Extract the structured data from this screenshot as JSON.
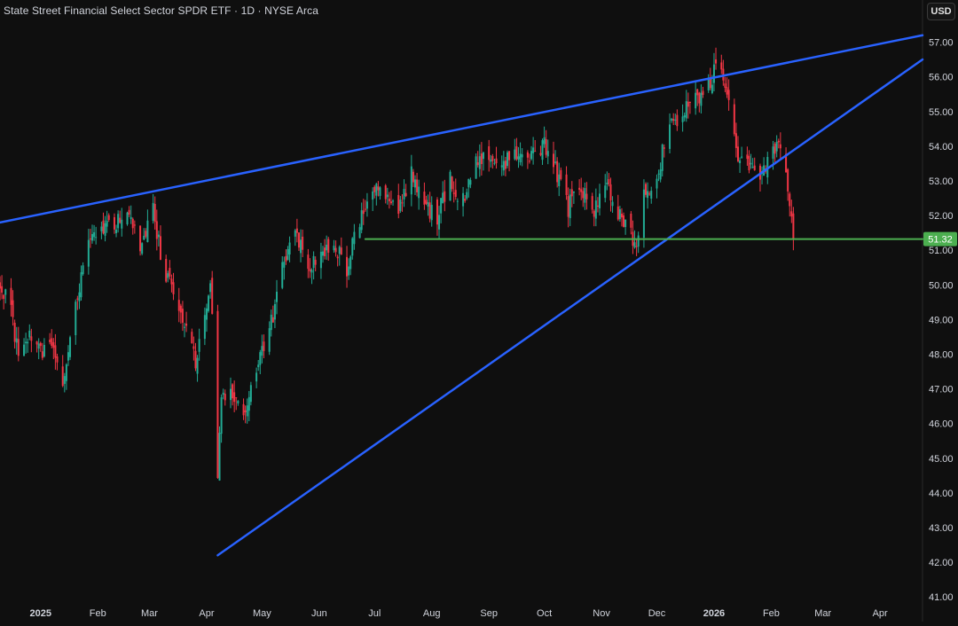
{
  "header": {
    "title": "State Street Financial Select Sector SPDR ETF · 1D · NYSE Arca",
    "currency_label": "USD"
  },
  "colors": {
    "background": "#0f0f0f",
    "up": "#22ab94",
    "down": "#f23645",
    "trendline": "#2962ff",
    "support": "#4caf50",
    "axis_text": "#d1d4dc"
  },
  "chart_data": {
    "type": "candlestick",
    "title": "State Street Financial Select Sector SPDR ETF · 1D · NYSE Arca",
    "currency": "USD",
    "y_axis": {
      "ylim": [
        40.8,
        57.5
      ],
      "ticks": [
        "41.00",
        "42.00",
        "43.00",
        "44.00",
        "45.00",
        "46.00",
        "47.00",
        "48.00",
        "49.00",
        "50.00",
        "51.00",
        "52.00",
        "53.00",
        "54.00",
        "55.00",
        "56.00",
        "57.00"
      ],
      "side": "right"
    },
    "x_axis": {
      "xlim": [
        "2024-12-10",
        "2026-04-24"
      ],
      "ticks": [
        {
          "date": "2025-01-01",
          "label": "2025",
          "bold": true
        },
        {
          "date": "2025-02-01",
          "label": "Feb",
          "bold": false
        },
        {
          "date": "2025-03-01",
          "label": "Mar",
          "bold": false
        },
        {
          "date": "2025-04-01",
          "label": "Apr",
          "bold": false
        },
        {
          "date": "2025-05-01",
          "label": "May",
          "bold": false
        },
        {
          "date": "2025-06-01",
          "label": "Jun",
          "bold": false
        },
        {
          "date": "2025-07-01",
          "label": "Jul",
          "bold": false
        },
        {
          "date": "2025-08-01",
          "label": "Aug",
          "bold": false
        },
        {
          "date": "2025-09-01",
          "label": "Sep",
          "bold": false
        },
        {
          "date": "2025-10-01",
          "label": "Oct",
          "bold": false
        },
        {
          "date": "2025-11-01",
          "label": "Nov",
          "bold": false
        },
        {
          "date": "2025-12-01",
          "label": "Dec",
          "bold": false
        },
        {
          "date": "2026-01-01",
          "label": "2026",
          "bold": true
        },
        {
          "date": "2026-02-01",
          "label": "Feb",
          "bold": false
        },
        {
          "date": "2026-03-01",
          "label": "Mar",
          "bold": false
        },
        {
          "date": "2026-04-01",
          "label": "Apr",
          "bold": false
        }
      ]
    },
    "close_path": [
      [
        "2024-12-10",
        50.1
      ],
      [
        "2024-12-16",
        49.3
      ],
      [
        "2024-12-20",
        47.9
      ],
      [
        "2024-12-27",
        48.6
      ],
      [
        "2025-01-02",
        48.0
      ],
      [
        "2025-01-08",
        48.3
      ],
      [
        "2025-01-13",
        47.3
      ],
      [
        "2025-01-20",
        49.5
      ],
      [
        "2025-01-27",
        51.2
      ],
      [
        "2025-02-03",
        51.6
      ],
      [
        "2025-02-10",
        51.8
      ],
      [
        "2025-02-17",
        52.1
      ],
      [
        "2025-02-24",
        51.2
      ],
      [
        "2025-03-03",
        52.2
      ],
      [
        "2025-03-07",
        50.9
      ],
      [
        "2025-03-13",
        49.8
      ],
      [
        "2025-03-20",
        48.8
      ],
      [
        "2025-03-26",
        47.7
      ],
      [
        "2025-03-31",
        49.2
      ],
      [
        "2025-04-03",
        50.1
      ],
      [
        "2025-04-05",
        48.4
      ],
      [
        "2025-04-07",
        44.3
      ],
      [
        "2025-04-09",
        46.8
      ],
      [
        "2025-04-14",
        46.9
      ],
      [
        "2025-04-21",
        46.2
      ],
      [
        "2025-04-28",
        47.7
      ],
      [
        "2025-05-05",
        48.6
      ],
      [
        "2025-05-12",
        50.6
      ],
      [
        "2025-05-19",
        51.7
      ],
      [
        "2025-05-26",
        50.4
      ],
      [
        "2025-06-02",
        51.0
      ],
      [
        "2025-06-09",
        51.2
      ],
      [
        "2025-06-16",
        50.5
      ],
      [
        "2025-06-23",
        51.9
      ],
      [
        "2025-06-30",
        52.9
      ],
      [
        "2025-07-07",
        52.4
      ],
      [
        "2025-07-14",
        52.1
      ],
      [
        "2025-07-21",
        53.3
      ],
      [
        "2025-07-28",
        52.2
      ],
      [
        "2025-08-04",
        52.0
      ],
      [
        "2025-08-11",
        53.0
      ],
      [
        "2025-08-18",
        52.4
      ],
      [
        "2025-08-25",
        53.5
      ],
      [
        "2025-09-01",
        53.8
      ],
      [
        "2025-09-08",
        53.5
      ],
      [
        "2025-09-15",
        53.9
      ],
      [
        "2025-09-22",
        53.8
      ],
      [
        "2025-10-01",
        54.0
      ],
      [
        "2025-10-08",
        53.2
      ],
      [
        "2025-10-14",
        52.2
      ],
      [
        "2025-10-20",
        53.0
      ],
      [
        "2025-10-27",
        52.1
      ],
      [
        "2025-11-03",
        52.9
      ],
      [
        "2025-11-10",
        52.0
      ],
      [
        "2025-11-17",
        51.4
      ],
      [
        "2025-11-20",
        51.3
      ],
      [
        "2025-11-24",
        52.6
      ],
      [
        "2025-12-01",
        53.2
      ],
      [
        "2025-12-08",
        54.6
      ],
      [
        "2025-12-15",
        54.8
      ],
      [
        "2025-12-22",
        55.7
      ],
      [
        "2025-12-26",
        55.3
      ],
      [
        "2026-01-02",
        56.3
      ],
      [
        "2026-01-06",
        56.0
      ],
      [
        "2026-01-10",
        55.0
      ],
      [
        "2026-01-14",
        53.8
      ],
      [
        "2026-01-20",
        53.4
      ],
      [
        "2026-01-26",
        53.0
      ],
      [
        "2026-01-31",
        53.8
      ],
      [
        "2026-02-06",
        54.0
      ],
      [
        "2026-02-10",
        52.9
      ],
      [
        "2026-02-13",
        51.32
      ]
    ],
    "annotations": [
      {
        "type": "trendline",
        "name": "upper-resistance",
        "color": "#2962ff",
        "from": [
          "2024-12-10",
          51.8
        ],
        "to": [
          "2026-04-24",
          57.2
        ]
      },
      {
        "type": "trendline",
        "name": "rising-support",
        "color": "#2962ff",
        "from": [
          "2025-04-07",
          42.2
        ],
        "to": [
          "2026-04-24",
          56.5
        ]
      },
      {
        "type": "horizontal",
        "name": "support-level",
        "color": "#4caf50",
        "from": [
          "2025-06-26",
          51.32
        ],
        "to": [
          "2026-04-24",
          51.32
        ]
      }
    ],
    "last_price": "51.32",
    "grid": false
  }
}
